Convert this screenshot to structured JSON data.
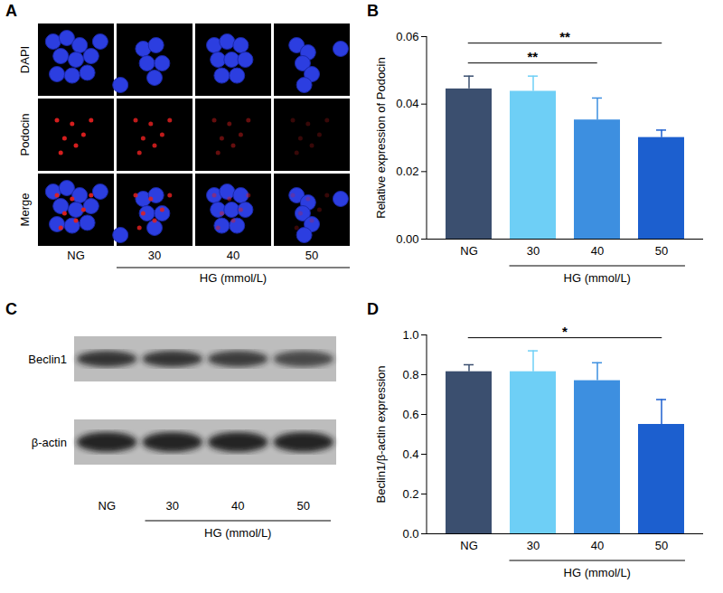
{
  "panels": [
    {
      "panel": "A",
      "type": "image_grid",
      "rows": [
        "DAPI",
        "Podocin",
        "Merge"
      ],
      "columns": [
        "NG",
        "30",
        "40",
        "50"
      ],
      "group_label": "HG (mmol/L)",
      "group_columns": [
        "30",
        "40",
        "50"
      ]
    },
    {
      "panel": "C",
      "type": "blot",
      "rows": [
        "Beclin1",
        "β-actin"
      ],
      "columns": [
        "NG",
        "30",
        "40",
        "50"
      ],
      "group_label": "HG (mmol/L)",
      "group_columns": [
        "30",
        "40",
        "50"
      ]
    }
  ],
  "chart_data": [
    {
      "panel": "B",
      "type": "bar",
      "categories": [
        "NG",
        "30",
        "40",
        "50"
      ],
      "values": [
        0.0445,
        0.0438,
        0.0353,
        0.0301
      ],
      "errors": [
        0.0038,
        0.0045,
        0.0065,
        0.0022
      ],
      "colors": [
        "#3b4f6f",
        "#6ecff6",
        "#3d8fe0",
        "#1c5fcf"
      ],
      "ylabel": "Relative expression of Podocin",
      "xlabel": "HG (mmol/L)",
      "xlabel_categories": [
        "30",
        "40",
        "50"
      ],
      "ylim": [
        0,
        0.06
      ],
      "yticks": [
        {
          "value": 0,
          "label": "0.00"
        },
        0.02,
        0.04,
        0.06
      ],
      "annotations": [
        {
          "from": "NG",
          "to": "40",
          "label": "**"
        },
        {
          "from": "NG",
          "to": "50",
          "label": "**"
        }
      ]
    },
    {
      "panel": "D",
      "type": "bar",
      "categories": [
        "NG",
        "30",
        "40",
        "50"
      ],
      "values": [
        0.815,
        0.815,
        0.77,
        0.55
      ],
      "errors": [
        0.035,
        0.105,
        0.09,
        0.125
      ],
      "colors": [
        "#3b4f6f",
        "#6ecff6",
        "#3d8fe0",
        "#1c5fcf"
      ],
      "ylabel": "Beclin1/β-actin expression",
      "xlabel": "HG (mmol/L)",
      "xlabel_categories": [
        "30",
        "40",
        "50"
      ],
      "ylim": [
        0,
        1.0
      ],
      "yticks": [
        {
          "value": 0,
          "label": "0.0"
        },
        0.2,
        0.4,
        0.6,
        0.8,
        {
          "value": 1,
          "label": "1.0"
        }
      ],
      "annotations": [
        {
          "from": "NG",
          "to": "50",
          "label": "*"
        }
      ]
    }
  ]
}
